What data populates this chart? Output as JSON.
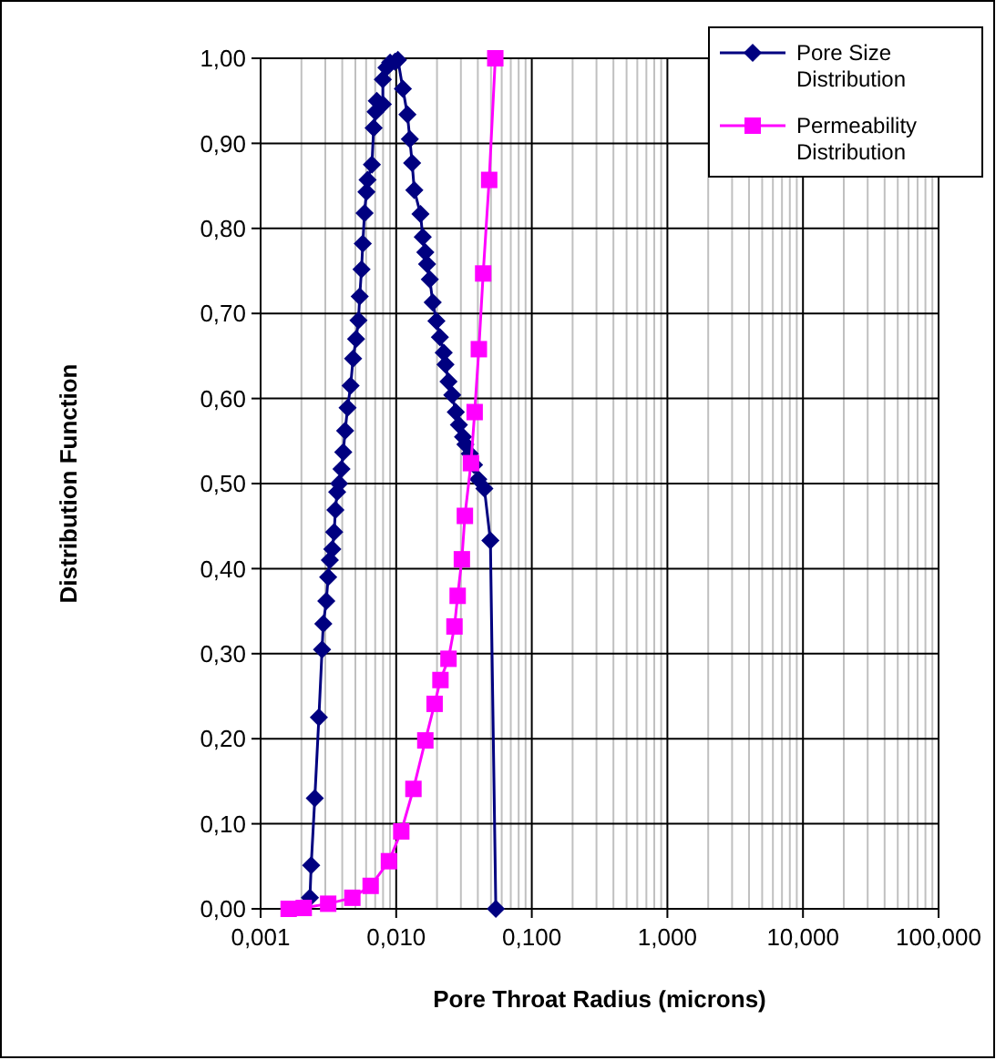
{
  "chart_data": {
    "type": "line",
    "xlabel": "Pore Throat Radius (microns)",
    "ylabel": "Distribution Function",
    "log": "x",
    "grid": true,
    "legend": "top right",
    "line_style": "solid",
    "xlim": [
      0.001,
      100
    ],
    "xticks": [
      {
        "value": 0.001,
        "label": "0,001"
      },
      {
        "value": 0.01,
        "label": "0,010"
      },
      {
        "value": 0.1,
        "label": "0,100"
      },
      {
        "value": 1,
        "label": "1,000"
      },
      {
        "value": 10,
        "label": "10,000"
      },
      {
        "value": 100,
        "label": "100,000"
      }
    ],
    "ylim": [
      0,
      1
    ],
    "yticks": [
      {
        "value": 0,
        "label": "0,00"
      },
      {
        "value": 0.1,
        "label": "0,10"
      },
      {
        "value": 0.2,
        "label": "0,20"
      },
      {
        "value": 0.3,
        "label": "0,30"
      },
      {
        "value": 0.4,
        "label": "0,40"
      },
      {
        "value": 0.5,
        "label": "0,50"
      },
      {
        "value": 0.6,
        "label": "0,60"
      },
      {
        "value": 0.7,
        "label": "0,70"
      },
      {
        "value": 0.8,
        "label": "0,80"
      },
      {
        "value": 0.9,
        "label": "0,90"
      },
      {
        "value": 1,
        "label": "1,00"
      }
    ],
    "series": [
      {
        "name": "Pore Size Distribution",
        "color": "#000080",
        "marker": "diamond",
        "x": [
          0.00231,
          0.00236,
          0.00251,
          0.00269,
          0.00284,
          0.0029,
          0.00305,
          0.00315,
          0.00324,
          0.00338,
          0.00349,
          0.00356,
          0.00367,
          0.00379,
          0.00395,
          0.00407,
          0.0042,
          0.00438,
          0.00461,
          0.00481,
          0.00506,
          0.00527,
          0.00538,
          0.00555,
          0.00567,
          0.00584,
          0.00603,
          0.00615,
          0.00662,
          0.00682,
          0.00705,
          0.00719,
          0.00797,
          0.00797,
          0.00847,
          0.00902,
          0.0098,
          0.0103,
          0.0112,
          0.0121,
          0.0126,
          0.0131,
          0.0136,
          0.0151,
          0.0157,
          0.0164,
          0.0169,
          0.0177,
          0.0186,
          0.0198,
          0.021,
          0.0224,
          0.0231,
          0.0243,
          0.0259,
          0.0275,
          0.029,
          0.0311,
          0.0324,
          0.0349,
          0.0375,
          0.0403,
          0.0447,
          0.0495,
          0.0543
        ],
        "values": [
          0.013,
          0.051,
          0.13,
          0.225,
          0.305,
          0.335,
          0.362,
          0.39,
          0.41,
          0.423,
          0.443,
          0.469,
          0.49,
          0.5,
          0.517,
          0.537,
          0.562,
          0.589,
          0.615,
          0.647,
          0.67,
          0.692,
          0.72,
          0.752,
          0.782,
          0.818,
          0.843,
          0.857,
          0.875,
          0.918,
          0.937,
          0.95,
          0.946,
          0.975,
          0.989,
          0.995,
          0.996,
          0.998,
          0.964,
          0.934,
          0.905,
          0.877,
          0.845,
          0.817,
          0.79,
          0.772,
          0.758,
          0.74,
          0.713,
          0.691,
          0.672,
          0.654,
          0.64,
          0.62,
          0.604,
          0.584,
          0.569,
          0.555,
          0.546,
          0.535,
          0.522,
          0.505,
          0.494,
          0.433,
          0
        ]
      },
      {
        "name": "Permeability Distribution",
        "color": "#ff00ff",
        "marker": "square",
        "x": [
          0.00161,
          0.00208,
          0.00315,
          0.00475,
          0.00648,
          0.00884,
          0.0109,
          0.0134,
          0.0164,
          0.0192,
          0.0212,
          0.0243,
          0.0269,
          0.0284,
          0.0305,
          0.0321,
          0.0356,
          0.0379,
          0.0407,
          0.0438,
          0.0485,
          0.0538
        ],
        "values": [
          0,
          0.001,
          0.006,
          0.013,
          0.027,
          0.056,
          0.091,
          0.141,
          0.198,
          0.241,
          0.269,
          0.294,
          0.332,
          0.368,
          0.411,
          0.462,
          0.524,
          0.584,
          0.658,
          0.747,
          0.857,
          1
        ]
      }
    ]
  }
}
